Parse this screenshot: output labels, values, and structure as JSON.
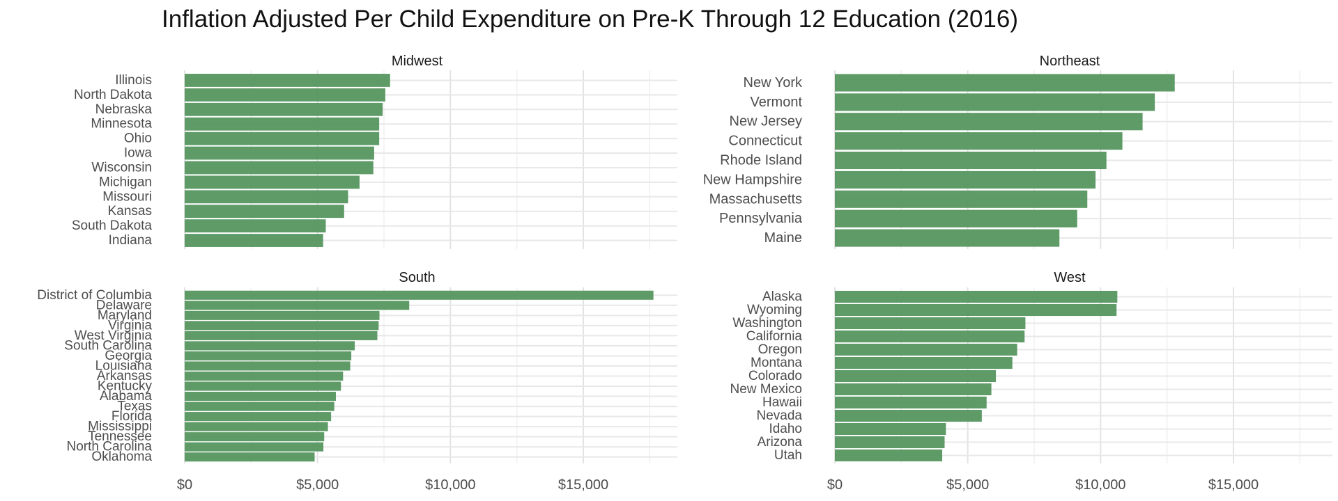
{
  "chart_data": {
    "type": "bar",
    "orientation": "horizontal",
    "title": "Inflation Adjusted Per Child Expenditure on Pre-K Through 12 Education (2016)",
    "bar_color": "#55965F",
    "x_tick_labels": [
      "$0",
      "$5,000",
      "$10,000",
      "$15,000"
    ],
    "x_ticks": [
      0,
      5000,
      10000,
      15000
    ],
    "xlim": [
      0,
      18500
    ],
    "grid": true,
    "panels": [
      {
        "name": "Midwest",
        "categories": [
          "Illinois",
          "North Dakota",
          "Nebraska",
          "Minnesota",
          "Ohio",
          "Iowa",
          "Wisconsin",
          "Michigan",
          "Missouri",
          "Kansas",
          "South Dakota",
          "Indiana"
        ],
        "values": [
          7730,
          7550,
          7450,
          7320,
          7320,
          7130,
          7100,
          6580,
          6150,
          6000,
          5310,
          5210
        ]
      },
      {
        "name": "Northeast",
        "categories": [
          "New York",
          "Vermont",
          "New Jersey",
          "Connecticut",
          "Rhode Island",
          "New Hampshire",
          "Massachusetts",
          "Pennsylvania",
          "Maine"
        ],
        "values": [
          12790,
          12040,
          11580,
          10820,
          10220,
          9810,
          9500,
          9120,
          8450
        ]
      },
      {
        "name": "South",
        "categories": [
          "District of Columbia",
          "Delaware",
          "Maryland",
          "Virginia",
          "West Virginia",
          "South Carolina",
          "Georgia",
          "Louisiana",
          "Arkansas",
          "Kentucky",
          "Alabama",
          "Texas",
          "Florida",
          "Mississippi",
          "Tennessee",
          "North Carolina",
          "Oklahoma"
        ],
        "values": [
          17640,
          8450,
          7330,
          7300,
          7250,
          6400,
          6270,
          6230,
          5960,
          5880,
          5690,
          5630,
          5510,
          5390,
          5250,
          5220,
          4890
        ]
      },
      {
        "name": "West",
        "categories": [
          "Alaska",
          "Wyoming",
          "Washington",
          "California",
          "Oregon",
          "Montana",
          "Colorado",
          "New Mexico",
          "Hawaii",
          "Nevada",
          "Idaho",
          "Arizona",
          "Utah"
        ],
        "values": [
          10630,
          10600,
          7170,
          7140,
          6860,
          6680,
          6060,
          5890,
          5710,
          5530,
          4180,
          4130,
          4040
        ]
      }
    ]
  }
}
